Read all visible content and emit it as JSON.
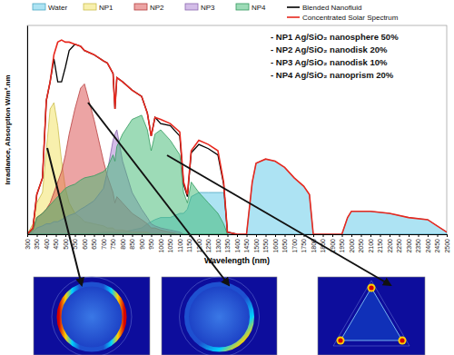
{
  "chart_data": {
    "type": "area",
    "y_label": "Irradiance, Absorption W/m².nm",
    "x_label": "Wavelength (nm)",
    "annotations": [
      "- NP1 Ag/SiO₂ nanosphere 50%",
      "- NP2 Ag/SiO₂ nanodisk 20%",
      "- NP3 Ag/SiO₂ nanodisk 10%",
      "- NP4 Ag/SiO₂ nanoprism 20%"
    ],
    "legend": "top",
    "grid": false,
    "tick_labels": "x",
    "xlim": [
      300,
      2500
    ],
    "ylim": [
      0,
      100
    ],
    "xticks": [
      300,
      350,
      400,
      450,
      500,
      550,
      600,
      650,
      700,
      750,
      800,
      850,
      900,
      950,
      1000,
      1050,
      1100,
      1150,
      1200,
      1250,
      1300,
      1350,
      1400,
      1450,
      1500,
      1550,
      1600,
      1650,
      1700,
      1750,
      1800,
      1850,
      1900,
      1950,
      2000,
      2050,
      2100,
      2150,
      2200,
      2250,
      2300,
      2350,
      2400,
      2450,
      2500
    ],
    "x": [
      300,
      330,
      350,
      380,
      400,
      420,
      440,
      460,
      480,
      500,
      520,
      550,
      580,
      600,
      650,
      700,
      720,
      750,
      760,
      770,
      800,
      850,
      900,
      930,
      950,
      970,
      1000,
      1050,
      1100,
      1120,
      1140,
      1160,
      1200,
      1250,
      1300,
      1330,
      1350,
      1400,
      1450,
      1480,
      1500,
      1550,
      1600,
      1650,
      1700,
      1750,
      1780,
      1800,
      1950,
      1980,
      2000,
      2100,
      2200,
      2300,
      2400,
      2450,
      2500
    ],
    "series": [
      {
        "name": "Water",
        "type": "area",
        "color": "#5cc8e8",
        "values": [
          0,
          0,
          0,
          0,
          0,
          0,
          0,
          0,
          0,
          0,
          0,
          0,
          0,
          0,
          0,
          1,
          1,
          1,
          1,
          1,
          1,
          2,
          3,
          5,
          6,
          7,
          8,
          8,
          10,
          10,
          12,
          18,
          20,
          20,
          20,
          20,
          1,
          0,
          0,
          25,
          34,
          36,
          35,
          32,
          27,
          23,
          19,
          0,
          0,
          8,
          11,
          11,
          10,
          8,
          7,
          4,
          1
        ]
      },
      {
        "name": "NP1",
        "type": "area",
        "color": "#f2e25c",
        "values": [
          0,
          5,
          15,
          20,
          40,
          60,
          63,
          52,
          35,
          22,
          15,
          10,
          8,
          6,
          5,
          4,
          3,
          3,
          2,
          2,
          2,
          1,
          1,
          1,
          0,
          0,
          0,
          null,
          null,
          null,
          null,
          null,
          null,
          null,
          null,
          null,
          null,
          null,
          null,
          null,
          null,
          null,
          null,
          null,
          null,
          null,
          null,
          null,
          null,
          null,
          null,
          null,
          null,
          null,
          null,
          null,
          null
        ]
      },
      {
        "name": "NP2",
        "type": "area",
        "color": "#d94a4a",
        "values": [
          0,
          2,
          8,
          10,
          12,
          15,
          20,
          25,
          30,
          38,
          48,
          60,
          70,
          72,
          55,
          35,
          28,
          20,
          15,
          18,
          15,
          10,
          7,
          5,
          3,
          3,
          2,
          1,
          0,
          null,
          null,
          null,
          null,
          null,
          null,
          null,
          null,
          null,
          null,
          null,
          null,
          null,
          null,
          null,
          null,
          null,
          null,
          null,
          null,
          null,
          null,
          null,
          null,
          null,
          null,
          null,
          null
        ]
      },
      {
        "name": "NP3",
        "type": "area",
        "color": "#a77bd1",
        "values": [
          0,
          1,
          3,
          4,
          5,
          5,
          6,
          6,
          7,
          8,
          9,
          10,
          12,
          13,
          16,
          22,
          30,
          45,
          48,
          50,
          35,
          20,
          12,
          8,
          5,
          4,
          3,
          2,
          1,
          0,
          null,
          null,
          null,
          null,
          null,
          null,
          null,
          null,
          null,
          null,
          null,
          null,
          null,
          null,
          null,
          null,
          null,
          null,
          null,
          null,
          null,
          null,
          null,
          null,
          null,
          null,
          null
        ]
      },
      {
        "name": "NP4",
        "type": "area",
        "color": "#3cb870",
        "values": [
          0,
          2,
          8,
          10,
          12,
          14,
          16,
          18,
          20,
          22,
          23,
          24,
          26,
          27,
          28,
          30,
          32,
          38,
          35,
          42,
          48,
          55,
          57,
          50,
          40,
          48,
          50,
          45,
          38,
          20,
          15,
          25,
          20,
          15,
          10,
          5,
          0,
          null,
          null,
          null,
          null,
          null,
          null,
          null,
          null,
          null,
          null,
          null,
          null,
          null,
          null,
          null,
          null,
          null,
          null,
          null,
          null
        ]
      },
      {
        "name": "Blended Nanofluid",
        "type": "line",
        "color": "#000000",
        "values": [
          0,
          3,
          19,
          27,
          64,
          73,
          84,
          73,
          73,
          80,
          88,
          91,
          90,
          88,
          86,
          83,
          82,
          77,
          60,
          75,
          73,
          69,
          66,
          58,
          47,
          56,
          53,
          52,
          47,
          24,
          18,
          39,
          43,
          41,
          38,
          24,
          1,
          0,
          null,
          null,
          null,
          null,
          null,
          null,
          null,
          null,
          null,
          null,
          null,
          null,
          null,
          null,
          null,
          null,
          null,
          null,
          null
        ]
      },
      {
        "name": "Concentrated Solar Spectrum",
        "type": "line",
        "color": "#e8281e",
        "values": [
          0,
          3,
          19,
          27,
          64,
          73,
          86,
          92,
          93,
          92,
          92,
          91,
          90,
          88,
          86,
          83,
          82,
          77,
          60,
          75,
          73,
          69,
          66,
          58,
          47,
          56,
          55,
          53,
          49,
          25,
          19,
          40,
          45,
          43,
          40,
          25,
          1,
          0,
          0,
          25,
          34,
          36,
          35,
          32,
          27,
          23,
          19,
          0,
          0,
          8,
          11,
          11,
          10,
          8,
          7,
          4,
          1
        ]
      }
    ]
  }
}
